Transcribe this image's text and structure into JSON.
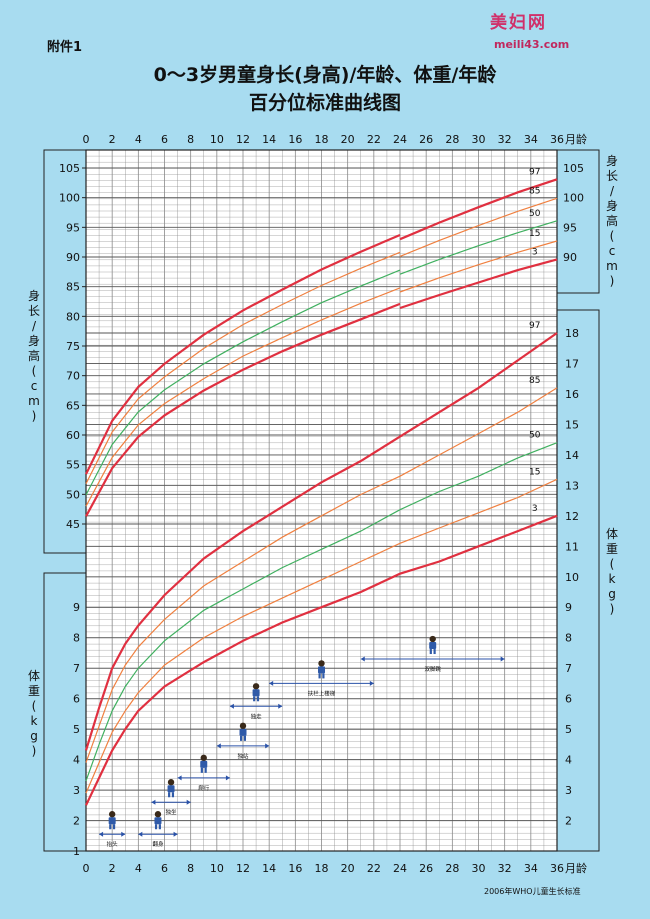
{
  "annex_label": "附件1",
  "title_line1": "0～3岁男童身长(身高)/年龄、体重/年龄",
  "title_line2": "百分位标准曲线图",
  "logo": {
    "text": "美妇网",
    "url": "meili43.com"
  },
  "source_note": "2006年WHO儿童生长标准",
  "x_unit": "月龄",
  "colors": {
    "p3": "#e03040",
    "p15": "#f08040",
    "p50": "#40b060",
    "p85": "#f08040",
    "p97": "#e03040",
    "grid": "#8a8a8a",
    "plot_bg": "#ffffff",
    "page_bg": "#a8dcf0"
  },
  "chart_data": [
    {
      "type": "line",
      "title": "身长/身高",
      "ylabel": "身长/身高 (cm)",
      "xlabel": "月龄",
      "xlim": [
        0,
        36
      ],
      "x_ticks": [
        0,
        2,
        4,
        6,
        8,
        10,
        12,
        14,
        16,
        18,
        20,
        22,
        24,
        26,
        28,
        30,
        32,
        34,
        36
      ],
      "ylim": [
        43,
        108
      ],
      "y_ticks_left": [
        45,
        50,
        55,
        60,
        65,
        70,
        75,
        80,
        85,
        90,
        95,
        100,
        105
      ],
      "y_ticks_right": [
        90,
        95,
        100,
        105
      ],
      "grid": true,
      "x": [
        0,
        2,
        4,
        6,
        9,
        12,
        15,
        18,
        21,
        24,
        24,
        27,
        30,
        33,
        36
      ],
      "series": [
        {
          "name": "97",
          "values": [
            53.4,
            62.4,
            68.1,
            72.0,
            76.9,
            81.0,
            84.5,
            87.9,
            90.9,
            93.7,
            93.0,
            95.8,
            98.4,
            100.9,
            103.1
          ]
        },
        {
          "name": "85",
          "values": [
            51.8,
            60.5,
            66.1,
            69.8,
            74.6,
            78.6,
            82.0,
            85.2,
            88.1,
            90.8,
            90.1,
            92.8,
            95.3,
            97.7,
            99.9
          ]
        },
        {
          "name": "50",
          "values": [
            49.9,
            58.4,
            63.9,
            67.6,
            72.0,
            75.7,
            79.1,
            82.3,
            85.1,
            87.8,
            87.1,
            89.6,
            91.9,
            94.1,
            96.1
          ]
        },
        {
          "name": "15",
          "values": [
            48.0,
            56.2,
            61.7,
            65.3,
            69.5,
            73.3,
            76.4,
            79.4,
            82.2,
            84.8,
            84.1,
            86.5,
            88.7,
            90.8,
            92.7
          ]
        },
        {
          "name": "3",
          "values": [
            46.3,
            54.4,
            59.7,
            63.3,
            67.5,
            71.0,
            74.1,
            76.9,
            79.5,
            82.1,
            81.4,
            83.6,
            85.7,
            87.8,
            89.6
          ]
        }
      ]
    },
    {
      "type": "line",
      "title": "体重",
      "ylabel": "体重 (kg)",
      "xlabel": "月龄",
      "xlim": [
        0,
        36
      ],
      "x_ticks": [
        0,
        2,
        4,
        6,
        8,
        10,
        12,
        14,
        16,
        18,
        20,
        22,
        24,
        26,
        28,
        30,
        32,
        34,
        36
      ],
      "ylim": [
        1,
        18.8
      ],
      "y_ticks_left": [
        1,
        2,
        3,
        4,
        5,
        6,
        7,
        8,
        9
      ],
      "y_ticks_right": [
        2,
        3,
        4,
        5,
        6,
        7,
        8,
        9,
        10,
        11,
        12,
        13,
        14,
        15,
        16,
        17,
        18
      ],
      "grid": true,
      "x": [
        0,
        1,
        2,
        3,
        4,
        6,
        9,
        12,
        15,
        18,
        21,
        24,
        27,
        30,
        33,
        36
      ],
      "series": [
        {
          "name": "97",
          "values": [
            4.3,
            5.7,
            7.0,
            7.8,
            8.4,
            9.4,
            10.6,
            11.5,
            12.3,
            13.1,
            13.8,
            14.6,
            15.4,
            16.2,
            17.1,
            18.0
          ]
        },
        {
          "name": "85",
          "values": [
            3.9,
            5.1,
            6.3,
            7.1,
            7.7,
            8.6,
            9.7,
            10.5,
            11.3,
            12.0,
            12.7,
            13.3,
            14.0,
            14.7,
            15.4,
            16.2
          ]
        },
        {
          "name": "50",
          "values": [
            3.3,
            4.5,
            5.6,
            6.4,
            7.0,
            7.9,
            8.9,
            9.6,
            10.3,
            10.9,
            11.5,
            12.2,
            12.8,
            13.3,
            13.9,
            14.4
          ]
        },
        {
          "name": "15",
          "values": [
            2.9,
            3.9,
            4.9,
            5.6,
            6.2,
            7.1,
            8.0,
            8.7,
            9.3,
            9.9,
            10.5,
            11.1,
            11.6,
            12.1,
            12.6,
            13.2
          ]
        },
        {
          "name": "3",
          "values": [
            2.5,
            3.4,
            4.3,
            5.0,
            5.6,
            6.4,
            7.2,
            7.9,
            8.5,
            9.0,
            9.5,
            10.1,
            10.5,
            11.0,
            11.5,
            12.0
          ]
        }
      ]
    }
  ],
  "milestones": [
    {
      "label": "抬头",
      "from": 1.0,
      "to": 3.0,
      "level": 1.55
    },
    {
      "label": "翻身",
      "from": 4.0,
      "to": 7.0,
      "level": 1.55
    },
    {
      "label": "独坐",
      "from": 5.0,
      "to": 8.0,
      "level": 2.6
    },
    {
      "label": "爬行",
      "from": 7.0,
      "to": 11.0,
      "level": 3.4
    },
    {
      "label": "独站",
      "from": 10.0,
      "to": 14.0,
      "level": 4.45
    },
    {
      "label": "独走",
      "from": 11.0,
      "to": 15.0,
      "level": 5.75
    },
    {
      "label": "扶栏上楼梯",
      "from": 14.0,
      "to": 22.0,
      "level": 6.5
    },
    {
      "label": "双脚跳",
      "from": 21.0,
      "to": 32.0,
      "level": 7.3
    }
  ]
}
